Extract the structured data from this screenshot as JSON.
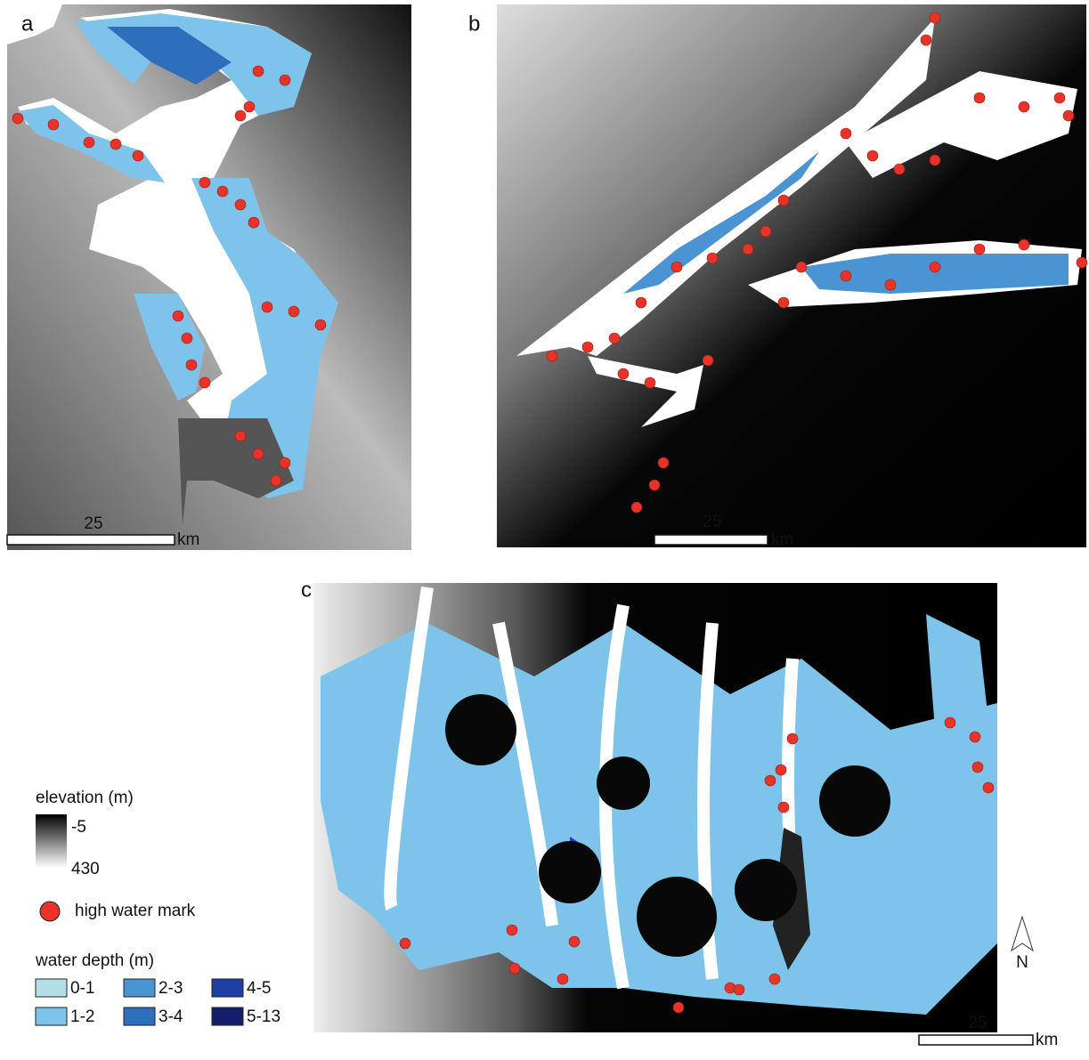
{
  "panels": [
    {
      "label": "a",
      "scale_bar": {
        "label": "25",
        "unit": "km"
      }
    },
    {
      "label": "b",
      "scale_bar": {
        "label": "25",
        "unit": "km"
      }
    },
    {
      "label": "c",
      "scale_bar": {
        "label": "25",
        "unit": "km"
      },
      "north_arrow": "N"
    }
  ],
  "legend": {
    "elevation": {
      "title": "elevation (m)",
      "min_label": "-5",
      "max_label": "430"
    },
    "high_water_mark": {
      "label": "high water mark",
      "color": "#e8322a"
    },
    "water_depth": {
      "title": "water depth (m)",
      "classes": [
        {
          "label": "0-1",
          "color": "#b3e0e8"
        },
        {
          "label": "1-2",
          "color": "#7ec3ea"
        },
        {
          "label": "2-3",
          "color": "#4b94d4"
        },
        {
          "label": "3-4",
          "color": "#2e6fbd"
        },
        {
          "label": "4-5",
          "color": "#1e3fa3"
        },
        {
          "label": "5-13",
          "color": "#141f6b"
        }
      ]
    }
  }
}
